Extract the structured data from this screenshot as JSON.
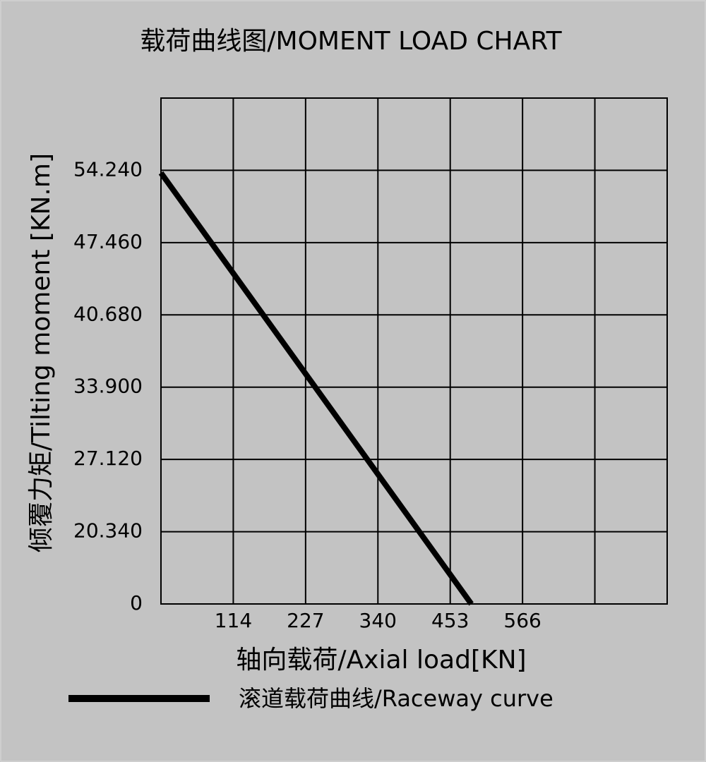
{
  "chart_data": {
    "type": "line",
    "title": "载荷曲线图/MOMENT LOAD CHART",
    "x_label": "轴向载荷/Axial load[KN]",
    "y_label": "倾覆力矩/Tilting moment [KN.m]",
    "x": [
      1,
      486
    ],
    "series": [
      {
        "name": "滚道载荷曲线/Raceway curve",
        "color": "#000000",
        "values": [
          54.0,
          0
        ]
      }
    ],
    "xlim": [
      1,
      792
    ],
    "xticks": [
      114,
      227,
      340,
      453,
      566
    ],
    "ylim": [
      0,
      61.02
    ],
    "yticks": [
      0,
      {
        "value": 20.34,
        "label": "20.340"
      },
      {
        "value": 27.12,
        "label": "27.120"
      },
      {
        "value": 33.9,
        "label": "33.900"
      },
      {
        "value": 40.68,
        "label": "40.680"
      },
      {
        "value": 47.46,
        "label": "47.460"
      },
      {
        "value": 54.24,
        "label": "54.240"
      }
    ],
    "grid": true
  }
}
